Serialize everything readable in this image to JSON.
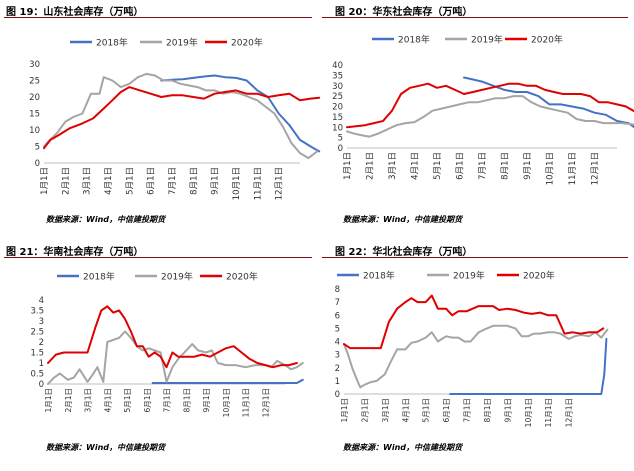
{
  "colors": {
    "y2018": "#4472C4",
    "y2019": "#A5A5A5",
    "y2020": "#E00000",
    "rule": "#7a0f14"
  },
  "months": [
    "1月1日",
    "2月1日",
    "3月1日",
    "4月1日",
    "5月1日",
    "6月1日",
    "7月1日",
    "8月1日",
    "9月1日",
    "10月1日",
    "11月1日",
    "12月1日"
  ],
  "chart_data": [
    {
      "type": "line",
      "title": "图 19：山东社会库存（万吨）",
      "source": "数据来源：Wind，中信建投期货",
      "legend_position": "top",
      "ylim": [
        0,
        30
      ],
      "yticks": [
        0,
        5,
        10,
        15,
        20,
        25,
        30
      ],
      "ytick_labels": [
        "0",
        "5",
        "10",
        "15",
        "20",
        "25",
        "30"
      ],
      "series": [
        {
          "name": "2018年",
          "key": "y2018",
          "x": [
            5.5,
            6,
            6.5,
            7,
            7.5,
            8,
            8.5,
            9,
            9.5,
            10,
            10.5,
            11,
            11.5,
            12,
            12.5,
            12.9
          ],
          "values": [
            25,
            25.2,
            25.4,
            25.8,
            26.2,
            26.5,
            26,
            25.8,
            25,
            22,
            20,
            15,
            11.5,
            7,
            5,
            3.5
          ]
        },
        {
          "name": "2019年",
          "key": "y2019",
          "x": [
            0,
            0.2,
            0.6,
            1,
            1.4,
            1.8,
            2.2,
            2.6,
            2.8,
            3.2,
            3.6,
            4,
            4.4,
            4.8,
            5.2,
            5.6,
            6,
            6.4,
            6.8,
            7.2,
            7.6,
            8,
            8.4,
            8.8,
            9.2,
            9.6,
            10,
            10.4,
            10.8,
            11.2,
            11.6,
            12,
            12.4,
            12.8
          ],
          "values": [
            5,
            6.5,
            9,
            12.5,
            14,
            15,
            21,
            21,
            26,
            25,
            23,
            24,
            26,
            27,
            26.5,
            25,
            25,
            24,
            23.5,
            23,
            22,
            22,
            21,
            21.5,
            21,
            20,
            19,
            17,
            15,
            11,
            6,
            3,
            1.5,
            3.5
          ]
        },
        {
          "name": "2020年",
          "key": "y2020",
          "x": [
            0,
            0.3,
            0.7,
            1.2,
            1.8,
            2.3,
            2.8,
            3.2,
            3.6,
            4,
            4.5,
            5,
            5.5,
            6,
            6.5,
            7,
            7.5,
            8,
            8.5,
            9,
            9.5,
            10,
            10.5,
            11,
            11.5,
            12,
            12.5,
            12.9
          ],
          "values": [
            4.5,
            7,
            8.5,
            10.5,
            12,
            13.5,
            16.5,
            19,
            21.5,
            23,
            22,
            21,
            20,
            20.5,
            20.5,
            20,
            19.5,
            21,
            21.5,
            22,
            21,
            21,
            20,
            20.5,
            21,
            19,
            19.5,
            19.8
          ]
        }
      ]
    },
    {
      "type": "line",
      "title": "图 20：华东社会库存（万吨）",
      "source": "数据来源：Wind，中信建投期货",
      "legend_position": "top",
      "ylim": [
        0,
        40
      ],
      "yticks": [
        0,
        5,
        10,
        15,
        20,
        25,
        30,
        35,
        40
      ],
      "ytick_labels": [
        "0",
        "5",
        "10",
        "15",
        "20",
        "25",
        "30",
        "35",
        "40"
      ],
      "series": [
        {
          "name": "2018年",
          "key": "y2018",
          "x": [
            5.2,
            5.6,
            6,
            6.5,
            7,
            7.5,
            8,
            8.5,
            9,
            9.5,
            10,
            10.5,
            11,
            11.5,
            12,
            12.5,
            12.9
          ],
          "values": [
            34,
            33,
            32,
            30,
            28,
            27,
            27,
            25,
            21,
            21,
            20,
            19,
            17,
            16,
            13,
            12,
            9
          ]
        },
        {
          "name": "2019年",
          "key": "y2019",
          "x": [
            0,
            0.3,
            0.7,
            1,
            1.4,
            1.8,
            2.2,
            2.6,
            3,
            3.4,
            3.8,
            4.2,
            4.6,
            5,
            5.4,
            5.8,
            6.2,
            6.6,
            7,
            7.4,
            7.8,
            8.2,
            8.6,
            9,
            9.4,
            9.8,
            10.2,
            10.6,
            11,
            11.4,
            11.8,
            12.2,
            12.6,
            12.9
          ],
          "values": [
            8,
            7,
            6,
            5.5,
            7,
            9,
            11,
            12,
            12.5,
            15,
            18,
            19,
            20,
            21,
            22,
            22,
            23,
            24,
            24,
            25,
            25,
            22,
            20,
            19,
            18,
            17,
            14,
            13,
            13,
            12,
            12,
            12,
            11.5,
            11
          ]
        },
        {
          "name": "2020年",
          "key": "y2020",
          "x": [
            0,
            0.4,
            0.8,
            1.2,
            1.6,
            2,
            2.4,
            2.8,
            3.2,
            3.6,
            4,
            4.4,
            4.8,
            5.2,
            5.6,
            6,
            6.4,
            6.8,
            7.2,
            7.6,
            8,
            8.4,
            8.8,
            9.2,
            9.6,
            10,
            10.4,
            10.8,
            11.2,
            11.6,
            12,
            12.4,
            12.8
          ],
          "values": [
            10,
            10.5,
            11,
            12,
            13,
            18,
            26,
            29,
            30,
            31,
            29,
            30,
            28,
            26,
            27,
            28,
            29,
            30,
            31,
            31,
            30,
            30,
            28,
            27,
            26,
            26,
            26,
            25,
            22,
            22,
            21,
            20,
            17.5
          ]
        }
      ]
    },
    {
      "type": "line",
      "title": "图 21：华南社会库存（万吨）",
      "source": "数据来源：Wind，中信建投期货",
      "legend_position": "top",
      "ylim": [
        0,
        4
      ],
      "yticks": [
        0,
        0.5,
        1,
        1.5,
        2,
        2.5,
        3,
        3.5,
        4
      ],
      "ytick_labels": [
        "0",
        "0.5",
        "1",
        "1.5",
        "2",
        "2.5",
        "3",
        "3.5",
        "4"
      ],
      "series": [
        {
          "name": "2018年",
          "key": "y2018",
          "x": [
            5.3,
            6,
            7,
            8,
            9,
            10,
            11,
            12,
            12.6,
            12.9
          ],
          "values": [
            0.05,
            0.05,
            0.05,
            0.05,
            0.05,
            0.05,
            0.05,
            0.05,
            0.05,
            0.2
          ]
        },
        {
          "name": "2019年",
          "key": "y2019",
          "x": [
            0,
            0.3,
            0.6,
            1,
            1.3,
            1.6,
            2,
            2.3,
            2.5,
            2.8,
            3,
            3.3,
            3.6,
            3.9,
            4.2,
            4.5,
            4.8,
            5.1,
            5.4,
            5.7,
            6,
            6.3,
            6.6,
            7,
            7.3,
            7.6,
            8,
            8.3,
            8.6,
            9,
            9.5,
            10,
            10.5,
            11,
            11.3,
            11.6,
            12,
            12.3,
            12.6,
            12.9
          ],
          "values": [
            0,
            0.3,
            0.5,
            0.2,
            0.3,
            0.7,
            0.1,
            0.5,
            0.8,
            0.1,
            2,
            2.1,
            2.2,
            2.5,
            2.2,
            1.8,
            1.6,
            1.7,
            1.6,
            1.5,
            0.1,
            0.8,
            1.2,
            1.6,
            1.9,
            1.6,
            1.5,
            1.6,
            1,
            0.9,
            0.9,
            0.8,
            0.9,
            0.9,
            0.8,
            1.1,
            0.9,
            0.7,
            0.8,
            1
          ]
        },
        {
          "name": "2020年",
          "key": "y2020",
          "x": [
            0,
            0.4,
            0.8,
            1.2,
            1.6,
            2,
            2.4,
            2.7,
            3,
            3.3,
            3.6,
            3.9,
            4.2,
            4.5,
            4.8,
            5.1,
            5.4,
            5.7,
            6,
            6.3,
            6.6,
            7,
            7.4,
            7.8,
            8.2,
            8.6,
            9,
            9.4,
            9.8,
            10.2,
            10.6,
            11,
            11.4,
            11.8,
            12.2,
            12.6
          ],
          "values": [
            1,
            1.4,
            1.5,
            1.5,
            1.5,
            1.5,
            2.7,
            3.5,
            3.7,
            3.4,
            3.5,
            3.1,
            2.5,
            1.8,
            1.8,
            1.3,
            1.5,
            1.3,
            0.8,
            1.5,
            1.3,
            1.3,
            1.3,
            1.4,
            1.3,
            1.5,
            1.7,
            1.8,
            1.5,
            1.2,
            1,
            0.9,
            0.8,
            0.9,
            0.9,
            1
          ]
        }
      ]
    },
    {
      "type": "line",
      "title": "图 22：华北社会库存（万吨）",
      "source": "数据来源：Wind，中信建投期货",
      "legend_position": "top",
      "ylim": [
        0,
        8
      ],
      "yticks": [
        0,
        1,
        2,
        3,
        4,
        5,
        6,
        7,
        8
      ],
      "ytick_labels": [
        "0",
        "1",
        "2",
        "3",
        "4",
        "5",
        "6",
        "7",
        "8"
      ],
      "series": [
        {
          "name": "2018年",
          "key": "y2018",
          "x": [
            5.2,
            6,
            7,
            8,
            9,
            10,
            11,
            12,
            12.6,
            12.75,
            12.85
          ],
          "values": [
            0,
            0,
            0,
            0,
            0,
            0,
            0,
            0,
            0,
            1.5,
            4.2
          ]
        },
        {
          "name": "2019年",
          "key": "y2019",
          "x": [
            0,
            0.2,
            0.4,
            0.6,
            0.8,
            1,
            1.3,
            1.6,
            2,
            2.3,
            2.6,
            3,
            3.3,
            3.6,
            4,
            4.3,
            4.6,
            5,
            5.3,
            5.6,
            5.9,
            6.2,
            6.6,
            7,
            7.3,
            7.6,
            8,
            8.4,
            8.7,
            9,
            9.3,
            9.6,
            10,
            10.3,
            10.6,
            11,
            11.3,
            11.6,
            12,
            12.3,
            12.6,
            12.9
          ],
          "values": [
            3.8,
            3,
            2,
            1.2,
            0.5,
            0.7,
            0.9,
            1,
            1.5,
            2.5,
            3.4,
            3.4,
            3.9,
            4,
            4.3,
            4.7,
            4,
            4.4,
            4.3,
            4.3,
            4,
            4,
            4.7,
            5,
            5.2,
            5.2,
            5.2,
            5,
            4.4,
            4.4,
            4.6,
            4.6,
            4.7,
            4.7,
            4.6,
            4.2,
            4.4,
            4.5,
            4.4,
            4.7,
            4.3,
            4.9
          ]
        },
        {
          "name": "2020年",
          "key": "y2020",
          "x": [
            0,
            0.3,
            0.6,
            1,
            1.4,
            1.8,
            2.2,
            2.6,
            3,
            3.3,
            3.6,
            4,
            4.3,
            4.6,
            5,
            5.3,
            5.6,
            6,
            6.3,
            6.6,
            7,
            7.3,
            7.6,
            8,
            8.4,
            8.8,
            9.2,
            9.6,
            10,
            10.4,
            10.8,
            11.2,
            11.6,
            12,
            12.4,
            12.7
          ],
          "values": [
            3.8,
            3.5,
            3.5,
            3.5,
            3.5,
            3.5,
            5.5,
            6.5,
            7,
            7.3,
            7,
            7,
            7.5,
            6.5,
            6.5,
            6,
            6.3,
            6.3,
            6.5,
            6.7,
            6.7,
            6.7,
            6.4,
            6.5,
            6.4,
            6.2,
            6.1,
            6.2,
            6,
            6,
            4.6,
            4.7,
            4.6,
            4.7,
            4.7,
            5
          ]
        }
      ]
    }
  ]
}
